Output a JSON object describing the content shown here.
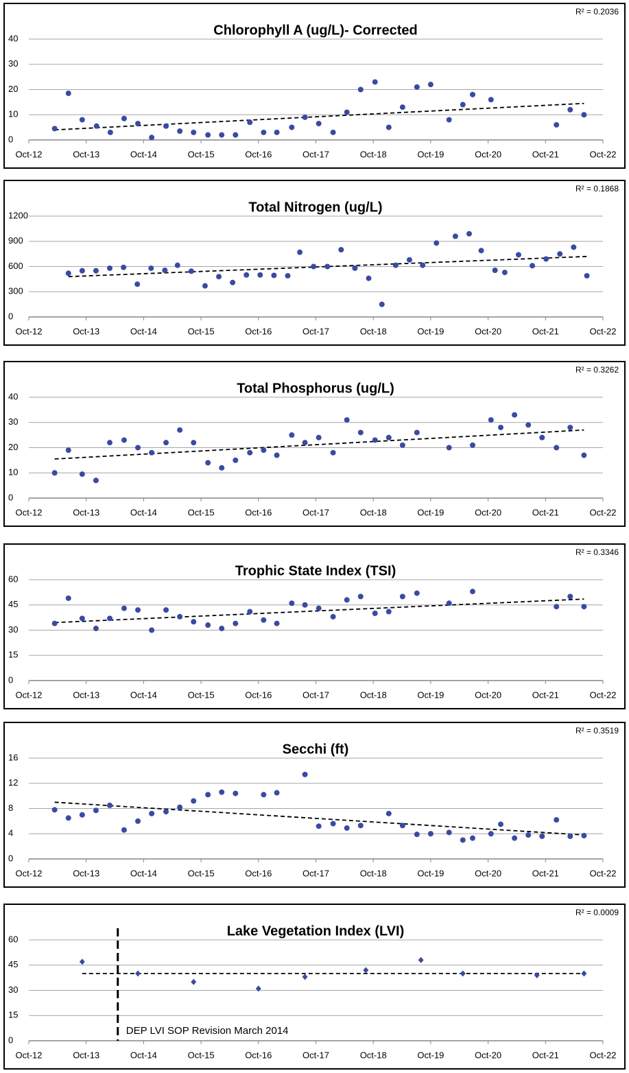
{
  "chart_data": [
    {
      "type": "scatter",
      "title": "Chlorophyll A (ug/L)- Corrected",
      "annotation": "R² = 0.2036",
      "color": "#3a4aa3",
      "marker": "circle",
      "grid": true,
      "x": [
        2013.2,
        2013.44,
        2013.68,
        2013.93,
        2014.17,
        2014.41,
        2014.65,
        2014.89,
        2015.14,
        2015.38,
        2015.62,
        2015.87,
        2016.11,
        2016.35,
        2016.6,
        2016.84,
        2017.07,
        2017.33,
        2017.56,
        2017.8,
        2018.05,
        2018.29,
        2018.53,
        2018.78,
        2019.02,
        2019.26,
        2019.51,
        2019.75,
        2020.07,
        2020.31,
        2020.48,
        2020.8,
        2021.94,
        2022.18,
        2022.42
      ],
      "values": [
        4.5,
        18.5,
        8,
        5.5,
        3,
        8.5,
        6.5,
        1,
        5.5,
        3.5,
        3,
        2,
        2,
        2,
        7,
        3,
        3,
        5,
        9,
        6.5,
        3,
        11,
        20,
        23,
        5,
        13,
        21,
        22,
        8,
        14,
        18,
        16,
        6,
        12,
        10
      ],
      "trendline": {
        "x": [
          2013.2,
          2022.42
        ],
        "y": [
          4,
          14.5
        ]
      },
      "xlim": [
        2012.75,
        2022.75
      ],
      "xticks": [
        {
          "value": 2012.75,
          "label": "Oct-12"
        },
        {
          "value": 2013.75,
          "label": "Oct-13"
        },
        {
          "value": 2014.75,
          "label": "Oct-14"
        },
        {
          "value": 2015.75,
          "label": "Oct-15"
        },
        {
          "value": 2016.75,
          "label": "Oct-16"
        },
        {
          "value": 2017.75,
          "label": "Oct-17"
        },
        {
          "value": 2018.75,
          "label": "Oct-18"
        },
        {
          "value": 2019.75,
          "label": "Oct-19"
        },
        {
          "value": 2020.75,
          "label": "Oct-20"
        },
        {
          "value": 2021.75,
          "label": "Oct-21"
        },
        {
          "value": 2022.75,
          "label": "Oct-22"
        }
      ],
      "ylim": [
        0,
        40
      ],
      "yticks": [
        0,
        10,
        20,
        30,
        40
      ]
    },
    {
      "type": "scatter",
      "title": "Total Nitrogen (ug/L)",
      "annotation": "R² = 0.1868",
      "color": "#3a4aa3",
      "marker": "circle",
      "grid": true,
      "x": [
        2013.44,
        2013.68,
        2013.92,
        2014.16,
        2014.4,
        2014.64,
        2014.88,
        2015.12,
        2015.34,
        2015.58,
        2015.82,
        2016.06,
        2016.3,
        2016.54,
        2016.78,
        2017.02,
        2017.26,
        2017.47,
        2017.71,
        2017.95,
        2018.19,
        2018.43,
        2018.67,
        2018.9,
        2019.14,
        2019.38,
        2019.61,
        2019.85,
        2020.18,
        2020.42,
        2020.63,
        2020.87,
        2021.04,
        2021.28,
        2021.52,
        2021.76,
        2022.0,
        2022.24,
        2022.47
      ],
      "values": [
        520,
        550,
        550,
        580,
        590,
        390,
        580,
        555,
        615,
        545,
        370,
        480,
        410,
        500,
        500,
        495,
        490,
        770,
        600,
        600,
        800,
        580,
        460,
        150,
        615,
        680,
        615,
        880,
        960,
        990,
        790,
        555,
        530,
        740,
        610,
        690,
        750,
        830,
        490
      ],
      "trendline": {
        "x": [
          2013.44,
          2022.47
        ],
        "y": [
          480,
          720
        ]
      },
      "xlim": [
        2012.75,
        2022.75
      ],
      "xticks": [
        {
          "value": 2012.75,
          "label": "Oct-12"
        },
        {
          "value": 2013.75,
          "label": "Oct-13"
        },
        {
          "value": 2014.75,
          "label": "Oct-14"
        },
        {
          "value": 2015.75,
          "label": "Oct-15"
        },
        {
          "value": 2016.75,
          "label": "Oct-16"
        },
        {
          "value": 2017.75,
          "label": "Oct-17"
        },
        {
          "value": 2018.75,
          "label": "Oct-18"
        },
        {
          "value": 2019.75,
          "label": "Oct-19"
        },
        {
          "value": 2020.75,
          "label": "Oct-20"
        },
        {
          "value": 2021.75,
          "label": "Oct-21"
        },
        {
          "value": 2022.75,
          "label": "Oct-22"
        }
      ],
      "ylim": [
        0,
        1200
      ],
      "yticks": [
        0,
        300,
        600,
        900,
        1200
      ]
    },
    {
      "type": "scatter",
      "title": "Total Phosphorus (ug/L)",
      "annotation": "R² = 0.3262",
      "color": "#3a4aa3",
      "marker": "circle",
      "grid": true,
      "x": [
        2013.2,
        2013.44,
        2013.68,
        2013.92,
        2014.16,
        2014.41,
        2014.65,
        2014.89,
        2015.14,
        2015.38,
        2015.62,
        2015.87,
        2016.11,
        2016.35,
        2016.6,
        2016.84,
        2017.07,
        2017.33,
        2017.56,
        2017.8,
        2018.05,
        2018.29,
        2018.53,
        2018.78,
        2019.02,
        2019.26,
        2019.51,
        2020.07,
        2020.48,
        2020.8,
        2020.97,
        2021.21,
        2021.45,
        2021.69,
        2021.94,
        2022.18,
        2022.42
      ],
      "values": [
        10,
        19,
        9.5,
        7,
        22,
        23,
        20,
        18,
        22,
        27,
        22,
        14,
        12,
        15,
        18,
        19,
        17,
        25,
        22,
        24,
        18,
        31,
        26,
        23,
        24,
        21,
        26,
        20,
        21,
        31,
        28,
        33,
        29,
        24,
        20,
        28,
        17
      ],
      "trendline": {
        "x": [
          2013.2,
          2022.42
        ],
        "y": [
          15.5,
          27
        ]
      },
      "xlim": [
        2012.75,
        2022.75
      ],
      "xticks": [
        {
          "value": 2012.75,
          "label": "Oct-12"
        },
        {
          "value": 2013.75,
          "label": "Oct-13"
        },
        {
          "value": 2014.75,
          "label": "Oct-14"
        },
        {
          "value": 2015.75,
          "label": "Oct-15"
        },
        {
          "value": 2016.75,
          "label": "Oct-16"
        },
        {
          "value": 2017.75,
          "label": "Oct-17"
        },
        {
          "value": 2018.75,
          "label": "Oct-18"
        },
        {
          "value": 2019.75,
          "label": "Oct-19"
        },
        {
          "value": 2020.75,
          "label": "Oct-20"
        },
        {
          "value": 2021.75,
          "label": "Oct-21"
        },
        {
          "value": 2022.75,
          "label": "Oct-22"
        }
      ],
      "ylim": [
        0,
        40
      ],
      "yticks": [
        0,
        10,
        20,
        30,
        40
      ]
    },
    {
      "type": "scatter",
      "title": "Trophic State Index (TSI)",
      "annotation": "R² = 0.3346",
      "color": "#3a4aa3",
      "marker": "circle",
      "grid": true,
      "x": [
        2013.2,
        2013.44,
        2013.68,
        2013.92,
        2014.16,
        2014.41,
        2014.65,
        2014.89,
        2015.14,
        2015.38,
        2015.62,
        2015.87,
        2016.11,
        2016.35,
        2016.6,
        2016.84,
        2017.07,
        2017.33,
        2017.56,
        2017.8,
        2018.05,
        2018.29,
        2018.53,
        2018.78,
        2019.02,
        2019.26,
        2019.51,
        2020.07,
        2020.48,
        2021.94,
        2022.18,
        2022.42
      ],
      "values": [
        34,
        49,
        37,
        31,
        37,
        43,
        42,
        30,
        42,
        38,
        35,
        33,
        31,
        34,
        41,
        36,
        34,
        46,
        45,
        43,
        38,
        48,
        50,
        40,
        41,
        50,
        52,
        46,
        53,
        44,
        50,
        44
      ],
      "trendline": {
        "x": [
          2013.2,
          2022.42
        ],
        "y": [
          34.5,
          48.5
        ]
      },
      "xlim": [
        2012.75,
        2022.75
      ],
      "xticks": [
        {
          "value": 2012.75,
          "label": "Oct-12"
        },
        {
          "value": 2013.75,
          "label": "Oct-13"
        },
        {
          "value": 2014.75,
          "label": "Oct-14"
        },
        {
          "value": 2015.75,
          "label": "Oct-15"
        },
        {
          "value": 2016.75,
          "label": "Oct-16"
        },
        {
          "value": 2017.75,
          "label": "Oct-17"
        },
        {
          "value": 2018.75,
          "label": "Oct-18"
        },
        {
          "value": 2019.75,
          "label": "Oct-19"
        },
        {
          "value": 2020.75,
          "label": "Oct-20"
        },
        {
          "value": 2021.75,
          "label": "Oct-21"
        },
        {
          "value": 2022.75,
          "label": "Oct-22"
        }
      ],
      "ylim": [
        0,
        60
      ],
      "yticks": [
        0,
        15,
        30,
        45,
        60
      ]
    },
    {
      "type": "scatter",
      "title": "Secchi (ft)",
      "annotation": "R² = 0.3519",
      "color": "#3a4aa3",
      "marker": "circle",
      "grid": true,
      "x": [
        2013.2,
        2013.44,
        2013.68,
        2013.92,
        2014.16,
        2014.41,
        2014.65,
        2014.89,
        2015.14,
        2015.38,
        2015.62,
        2015.87,
        2016.11,
        2016.35,
        2016.84,
        2017.07,
        2017.56,
        2017.8,
        2018.05,
        2018.29,
        2018.53,
        2019.02,
        2019.26,
        2019.51,
        2019.75,
        2020.07,
        2020.31,
        2020.48,
        2020.8,
        2020.97,
        2021.21,
        2021.45,
        2021.69,
        2021.94,
        2022.18,
        2022.42
      ],
      "values": [
        7.8,
        6.5,
        7,
        7.7,
        8.5,
        4.6,
        6,
        7.2,
        7.5,
        8.2,
        9.2,
        10.2,
        10.6,
        10.4,
        10.2,
        10.5,
        13.4,
        5.2,
        5.6,
        4.9,
        5.3,
        7.2,
        5.3,
        3.9,
        4,
        4.2,
        3,
        3.3,
        4,
        5.5,
        3.3,
        3.8,
        3.6,
        6.2,
        3.6,
        3.7
      ],
      "trendline": {
        "x": [
          2013.2,
          2022.42
        ],
        "y": [
          9,
          3.8
        ]
      },
      "xlim": [
        2012.75,
        2022.75
      ],
      "xticks": [
        {
          "value": 2012.75,
          "label": "Oct-12"
        },
        {
          "value": 2013.75,
          "label": "Oct-13"
        },
        {
          "value": 2014.75,
          "label": "Oct-14"
        },
        {
          "value": 2015.75,
          "label": "Oct-15"
        },
        {
          "value": 2016.75,
          "label": "Oct-16"
        },
        {
          "value": 2017.75,
          "label": "Oct-17"
        },
        {
          "value": 2018.75,
          "label": "Oct-18"
        },
        {
          "value": 2019.75,
          "label": "Oct-19"
        },
        {
          "value": 2020.75,
          "label": "Oct-20"
        },
        {
          "value": 2021.75,
          "label": "Oct-21"
        },
        {
          "value": 2022.75,
          "label": "Oct-22"
        }
      ],
      "ylim": [
        0,
        16
      ],
      "yticks": [
        0,
        4,
        8,
        12,
        16
      ]
    },
    {
      "type": "scatter",
      "title": "Lake Vegetation Index (LVI)",
      "annotation": "R² = 0.0009",
      "color": "#3a4aa3",
      "marker": "diamond",
      "grid": true,
      "x": [
        2013.68,
        2014.65,
        2015.62,
        2016.75,
        2017.56,
        2018.62,
        2019.58,
        2020.31,
        2021.6,
        2022.42
      ],
      "values": [
        47,
        40,
        35,
        31,
        38,
        42,
        48,
        40,
        39,
        40
      ],
      "trendline": {
        "x": [
          2013.68,
          2022.42
        ],
        "y": [
          40,
          40
        ]
      },
      "vline": {
        "x": 2014.3,
        "label": "DEP LVI SOP Revision March 2014"
      },
      "xlim": [
        2012.75,
        2022.75
      ],
      "xticks": [
        {
          "value": 2012.75,
          "label": "Oct-12"
        },
        {
          "value": 2013.75,
          "label": "Oct-13"
        },
        {
          "value": 2014.75,
          "label": "Oct-14"
        },
        {
          "value": 2015.75,
          "label": "Oct-15"
        },
        {
          "value": 2016.75,
          "label": "Oct-16"
        },
        {
          "value": 2017.75,
          "label": "Oct-17"
        },
        {
          "value": 2018.75,
          "label": "Oct-18"
        },
        {
          "value": 2019.75,
          "label": "Oct-19"
        },
        {
          "value": 2020.75,
          "label": "Oct-20"
        },
        {
          "value": 2021.75,
          "label": "Oct-21"
        },
        {
          "value": 2022.75,
          "label": "Oct-22"
        }
      ],
      "ylim": [
        0,
        60
      ],
      "yticks": [
        0,
        15,
        30,
        45,
        60
      ]
    }
  ]
}
